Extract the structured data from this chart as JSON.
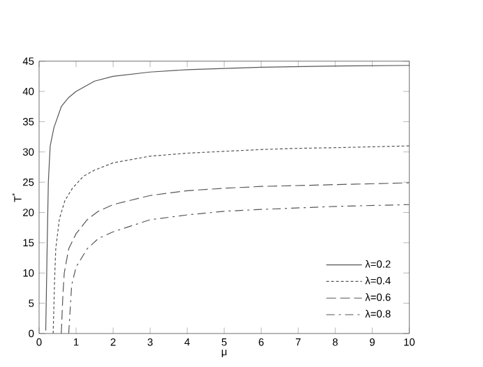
{
  "chart_data": {
    "type": "line",
    "xlabel": "μ",
    "ylabel": "T$^{*}$",
    "xlim": [
      0,
      10
    ],
    "ylim": [
      0,
      45
    ],
    "xticks": [
      0,
      1,
      2,
      3,
      4,
      5,
      6,
      7,
      8,
      9,
      10
    ],
    "yticks": [
      0,
      5,
      10,
      15,
      20,
      25,
      30,
      35,
      40,
      45
    ],
    "grid": false,
    "legend": "bottom right",
    "marker": "none",
    "series": [
      {
        "name": "λ=0.2",
        "color": "#555555",
        "line_style": "solid",
        "x": [
          0.18,
          0.22,
          0.25,
          0.3,
          0.4,
          0.6,
          0.8,
          1,
          1.5,
          2,
          3,
          4,
          5,
          6,
          8,
          10
        ],
        "values": [
          0.5,
          15,
          25,
          31,
          34,
          37.5,
          39,
          40,
          41.7,
          42.5,
          43.2,
          43.6,
          43.8,
          44,
          44.2,
          44.3
        ]
      },
      {
        "name": "λ=0.4",
        "color": "#555555",
        "line_style": "dotted",
        "x": [
          0.38,
          0.42,
          0.45,
          0.55,
          0.7,
          0.9,
          1.2,
          1.5,
          2,
          3,
          4,
          5,
          6,
          7,
          8,
          10
        ],
        "values": [
          0,
          9,
          14,
          19,
          22,
          24,
          26,
          27,
          28.2,
          29.3,
          29.8,
          30.1,
          30.4,
          30.6,
          30.7,
          31
        ]
      },
      {
        "name": "λ=0.6",
        "color": "#555555",
        "line_style": "dashed",
        "x": [
          0.6,
          0.64,
          0.68,
          0.8,
          1,
          1.3,
          1.6,
          2,
          3,
          4,
          5,
          6,
          8,
          10
        ],
        "values": [
          0,
          6,
          10,
          14,
          16.5,
          18.8,
          20.2,
          21.3,
          22.8,
          23.6,
          24,
          24.3,
          24.6,
          24.9
        ]
      },
      {
        "name": "λ=0.8",
        "color": "#555555",
        "line_style": "dashdot",
        "x": [
          0.8,
          0.84,
          0.88,
          1,
          1.3,
          1.6,
          2,
          3,
          4,
          5,
          6,
          8,
          10
        ],
        "values": [
          0,
          4,
          8,
          11,
          14,
          15.7,
          16.8,
          18.8,
          19.6,
          20.2,
          20.5,
          21,
          21.3
        ]
      }
    ]
  }
}
